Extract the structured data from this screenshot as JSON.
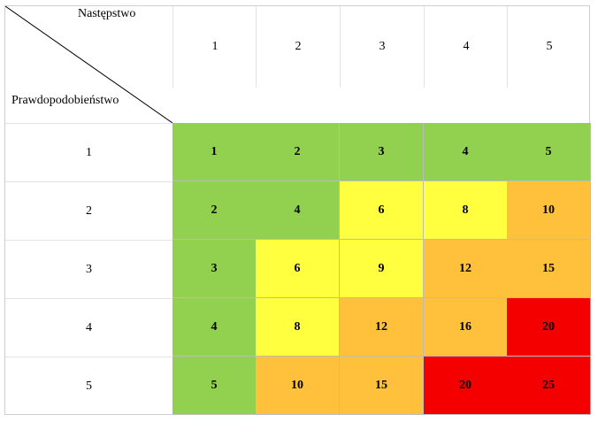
{
  "matrix": {
    "top_label": "Następstwo",
    "left_label": "Prawdopodobieństwo",
    "columns": [
      "1",
      "2",
      "3",
      "4",
      "5"
    ],
    "rows": [
      {
        "label": "1",
        "cells": [
          {
            "value": "1",
            "level": "green"
          },
          {
            "value": "2",
            "level": "green"
          },
          {
            "value": "3",
            "level": "green"
          },
          {
            "value": "4",
            "level": "green"
          },
          {
            "value": "5",
            "level": "green"
          }
        ]
      },
      {
        "label": "2",
        "cells": [
          {
            "value": "2",
            "level": "green"
          },
          {
            "value": "4",
            "level": "green"
          },
          {
            "value": "6",
            "level": "yellow"
          },
          {
            "value": "8",
            "level": "yellow"
          },
          {
            "value": "10",
            "level": "orange"
          }
        ]
      },
      {
        "label": "3",
        "cells": [
          {
            "value": "3",
            "level": "green"
          },
          {
            "value": "6",
            "level": "yellow"
          },
          {
            "value": "9",
            "level": "yellow"
          },
          {
            "value": "12",
            "level": "orange"
          },
          {
            "value": "15",
            "level": "orange"
          }
        ]
      },
      {
        "label": "4",
        "cells": [
          {
            "value": "4",
            "level": "green"
          },
          {
            "value": "8",
            "level": "yellow"
          },
          {
            "value": "12",
            "level": "orange"
          },
          {
            "value": "16",
            "level": "orange"
          },
          {
            "value": "20",
            "level": "red"
          }
        ]
      },
      {
        "label": "5",
        "cells": [
          {
            "value": "5",
            "level": "green"
          },
          {
            "value": "10",
            "level": "orange"
          },
          {
            "value": "15",
            "level": "orange"
          },
          {
            "value": "20",
            "level": "red"
          },
          {
            "value": "25",
            "level": "red"
          }
        ]
      }
    ]
  },
  "colors": {
    "green": "#92d050",
    "yellow": "#ffff40",
    "orange": "#ffc13b",
    "red": "#f40000"
  }
}
